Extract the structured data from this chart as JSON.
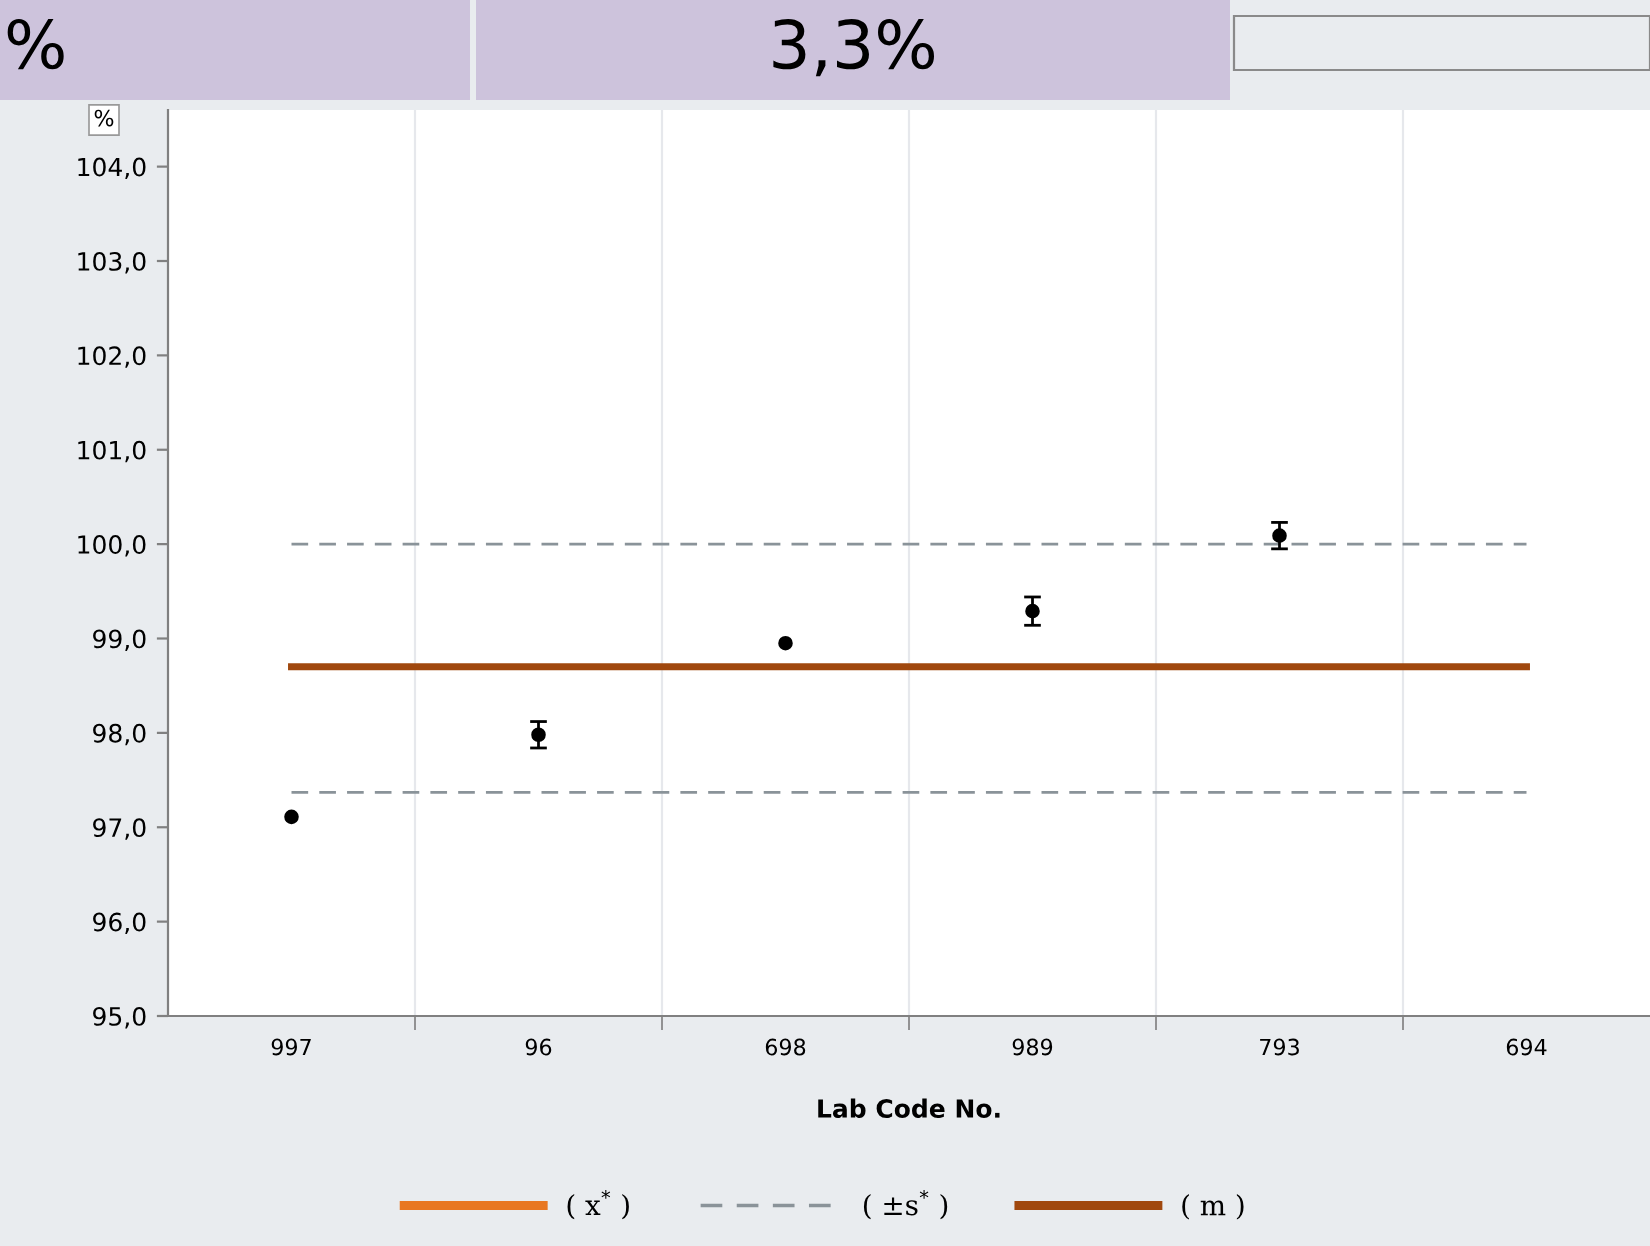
{
  "chart_data": {
    "type": "scatter",
    "xlabel": "Lab Code No.",
    "ylabel": "%",
    "annotations": [
      "%",
      "3,3%"
    ],
    "categories": [
      "997",
      "96",
      "698",
      "989",
      "793",
      "694"
    ],
    "ylim": [
      95,
      104.6
    ],
    "yticks": [
      {
        "value": 95,
        "label": "95,0"
      },
      {
        "value": 96,
        "label": "96,0"
      },
      {
        "value": 97,
        "label": "97,0"
      },
      {
        "value": 98,
        "label": "98,0"
      },
      {
        "value": 99,
        "label": "99,0"
      },
      {
        "value": 100,
        "label": "100,0"
      },
      {
        "value": 101,
        "label": "101,0"
      },
      {
        "value": 102,
        "label": "102,0"
      },
      {
        "value": 103,
        "label": "103,0"
      },
      {
        "value": 104,
        "label": "104,0"
      }
    ],
    "grid": "x",
    "legend": "bottom",
    "series": [
      {
        "marker": "circle",
        "color": "#000000",
        "values": [
          97.11,
          97.98,
          98.95,
          99.29,
          100.09,
          null
        ],
        "errors": [
          null,
          0.14,
          null,
          0.15,
          0.14,
          null
        ]
      },
      {
        "type": "line",
        "name": "( x$^{*}$ )",
        "color": "#e87722",
        "line_style": "solid",
        "values": [
          null,
          null,
          null,
          null,
          null,
          null
        ]
      },
      {
        "type": "line",
        "name": "( ±s$^{*}$ )",
        "color": "#8a9399",
        "line_style": "dashed",
        "values": [
          100.0,
          100.0,
          100.0,
          100.0,
          100.0,
          100.0
        ]
      },
      {
        "type": "line",
        "color": "#8a9399",
        "line_style": "dashed",
        "values": [
          97.37,
          97.37,
          97.37,
          97.37,
          97.37,
          97.37
        ]
      },
      {
        "type": "line",
        "name": "( m )",
        "color": "#a0480e",
        "line_style": "solid",
        "values": [
          98.7,
          98.7,
          98.7,
          98.7,
          98.7,
          98.7
        ]
      }
    ]
  }
}
